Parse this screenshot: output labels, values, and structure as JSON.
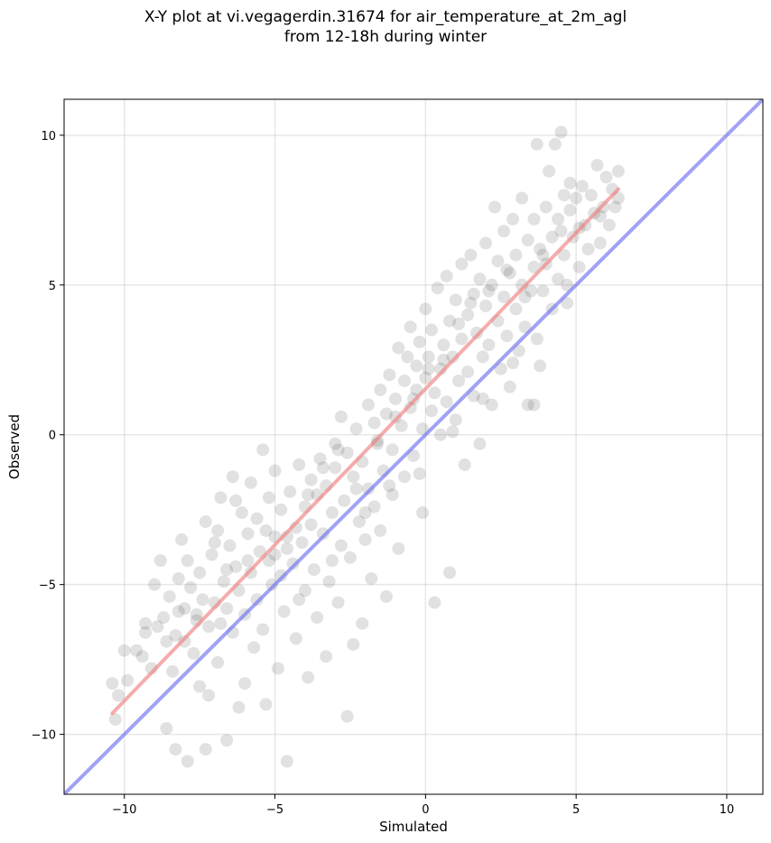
{
  "chart_data": {
    "type": "scatter",
    "title_lines": [
      "X-Y plot at vi.vegagerdin.31674 for air_temperature_at_2m_agl",
      "from 12-18h during winter"
    ],
    "xlabel": "Simulated",
    "ylabel": "Observed",
    "xlim": [
      -12.0,
      11.2
    ],
    "ylim": [
      -12.0,
      11.2
    ],
    "xticks": [
      -10,
      -5,
      0,
      5,
      10
    ],
    "yticks": [
      -10,
      -5,
      0,
      5,
      10
    ],
    "xtick_labels": [
      "−10",
      "−5",
      "0",
      "5",
      "10"
    ],
    "ytick_labels": [
      "−10",
      "−5",
      "0",
      "5",
      "10"
    ],
    "grid": true,
    "point_color": "#444444",
    "point_alpha": 0.16,
    "series": [
      {
        "kind": "points",
        "points": [
          [
            -10.4,
            -8.3
          ],
          [
            -10.3,
            -9.5
          ],
          [
            -10.2,
            -8.7
          ],
          [
            -10.0,
            -7.2
          ],
          [
            -9.9,
            -8.2
          ],
          [
            -9.6,
            -7.2
          ],
          [
            -9.4,
            -7.4
          ],
          [
            -9.3,
            -6.6
          ],
          [
            -9.1,
            -7.8
          ],
          [
            -9.0,
            -5.0
          ],
          [
            -8.9,
            -6.4
          ],
          [
            -8.8,
            -4.2
          ],
          [
            -8.7,
            -6.1
          ],
          [
            -8.6,
            -6.9
          ],
          [
            -8.6,
            -9.8
          ],
          [
            -8.5,
            -5.4
          ],
          [
            -8.4,
            -7.9
          ],
          [
            -8.3,
            -6.7
          ],
          [
            -8.3,
            -10.5
          ],
          [
            -8.2,
            -4.8
          ],
          [
            -8.1,
            -3.5
          ],
          [
            -8.0,
            -5.8
          ],
          [
            -8.0,
            -6.9
          ],
          [
            -7.9,
            -4.2
          ],
          [
            -7.9,
            -10.9
          ],
          [
            -7.8,
            -5.1
          ],
          [
            -7.7,
            -7.3
          ],
          [
            -7.6,
            -6.0
          ],
          [
            -7.5,
            -4.6
          ],
          [
            -7.5,
            -8.4
          ],
          [
            -7.4,
            -5.5
          ],
          [
            -7.3,
            -2.9
          ],
          [
            -7.3,
            -10.5
          ],
          [
            -7.2,
            -6.4
          ],
          [
            -7.2,
            -8.7
          ],
          [
            -7.1,
            -4.0
          ],
          [
            -7.0,
            -5.6
          ],
          [
            -6.9,
            -3.2
          ],
          [
            -6.9,
            -7.6
          ],
          [
            -6.8,
            -6.3
          ],
          [
            -6.8,
            -2.1
          ],
          [
            -6.7,
            -4.9
          ],
          [
            -6.6,
            -5.8
          ],
          [
            -6.6,
            -10.2
          ],
          [
            -6.5,
            -3.7
          ],
          [
            -6.4,
            -6.6
          ],
          [
            -6.4,
            -1.4
          ],
          [
            -6.3,
            -4.4
          ],
          [
            -6.2,
            -9.1
          ],
          [
            -6.2,
            -5.2
          ],
          [
            -6.1,
            -2.6
          ],
          [
            -6.0,
            -6.0
          ],
          [
            -6.0,
            -8.3
          ],
          [
            -5.9,
            -3.3
          ],
          [
            -5.8,
            -4.6
          ],
          [
            -5.8,
            -1.6
          ],
          [
            -5.7,
            -7.1
          ],
          [
            -5.6,
            -5.5
          ],
          [
            -5.6,
            -2.8
          ],
          [
            -5.5,
            -3.9
          ],
          [
            -5.4,
            -0.5
          ],
          [
            -5.4,
            -6.5
          ],
          [
            -5.3,
            -9.0
          ],
          [
            -5.2,
            -4.2
          ],
          [
            -5.2,
            -2.1
          ],
          [
            -5.1,
            -5.0
          ],
          [
            -5.0,
            -3.4
          ],
          [
            -5.0,
            -1.2
          ],
          [
            -4.9,
            -7.8
          ],
          [
            -4.8,
            -4.7
          ],
          [
            -4.8,
            -2.5
          ],
          [
            -4.7,
            -5.9
          ],
          [
            -4.6,
            -3.8
          ],
          [
            -4.6,
            -10.9
          ],
          [
            -4.5,
            -1.9
          ],
          [
            -4.4,
            -4.3
          ],
          [
            -4.3,
            -3.1
          ],
          [
            -4.3,
            -6.8
          ],
          [
            -4.2,
            -1.0
          ],
          [
            -4.1,
            -3.6
          ],
          [
            -4.0,
            -5.2
          ],
          [
            -4.0,
            -2.4
          ],
          [
            -3.9,
            -8.1
          ],
          [
            -3.8,
            -3.0
          ],
          [
            -3.8,
            -1.5
          ],
          [
            -3.7,
            -4.5
          ],
          [
            -3.6,
            -2.0
          ],
          [
            -3.6,
            -6.1
          ],
          [
            -3.5,
            -0.8
          ],
          [
            -3.4,
            -3.3
          ],
          [
            -3.3,
            -1.7
          ],
          [
            -3.3,
            -7.4
          ],
          [
            -3.2,
            -4.9
          ],
          [
            -3.1,
            -2.6
          ],
          [
            -3.0,
            -0.3
          ],
          [
            -3.0,
            -1.1
          ],
          [
            -2.9,
            -5.6
          ],
          [
            -2.8,
            -3.7
          ],
          [
            -2.8,
            0.6
          ],
          [
            -2.7,
            -2.2
          ],
          [
            -2.6,
            -0.6
          ],
          [
            -2.6,
            -9.4
          ],
          [
            -2.5,
            -4.1
          ],
          [
            -2.4,
            -1.4
          ],
          [
            -2.4,
            -7.0
          ],
          [
            -2.3,
            0.2
          ],
          [
            -2.2,
            -2.9
          ],
          [
            -2.1,
            -0.9
          ],
          [
            -2.1,
            -6.3
          ],
          [
            -2.0,
            -3.5
          ],
          [
            -1.9,
            1.0
          ],
          [
            -1.9,
            -1.8
          ],
          [
            -1.8,
            -4.8
          ],
          [
            -1.7,
            0.4
          ],
          [
            -1.7,
            -2.4
          ],
          [
            -1.6,
            -0.2
          ],
          [
            -1.5,
            1.5
          ],
          [
            -1.5,
            -3.2
          ],
          [
            -1.4,
            -1.2
          ],
          [
            -1.3,
            0.7
          ],
          [
            -1.3,
            -5.4
          ],
          [
            -1.2,
            2.0
          ],
          [
            -1.1,
            -0.5
          ],
          [
            -1.1,
            -2.0
          ],
          [
            -1.0,
            1.2
          ],
          [
            -0.9,
            2.9
          ],
          [
            -0.9,
            -3.8
          ],
          [
            -0.8,
            0.3
          ],
          [
            -0.7,
            1.8
          ],
          [
            -0.7,
            -1.4
          ],
          [
            -0.6,
            2.6
          ],
          [
            -0.5,
            0.9
          ],
          [
            -0.5,
            3.6
          ],
          [
            -0.4,
            -0.7
          ],
          [
            -0.3,
            1.5
          ],
          [
            -0.3,
            2.3
          ],
          [
            -0.2,
            3.1
          ],
          [
            -0.1,
            0.2
          ],
          [
            -0.1,
            -2.6
          ],
          [
            0.0,
            1.9
          ],
          [
            0.0,
            4.2
          ],
          [
            0.1,
            2.6
          ],
          [
            0.2,
            0.8
          ],
          [
            0.2,
            3.5
          ],
          [
            0.3,
            -5.6
          ],
          [
            0.3,
            1.4
          ],
          [
            0.4,
            4.9
          ],
          [
            0.5,
            2.2
          ],
          [
            0.5,
            0.0
          ],
          [
            0.6,
            3.0
          ],
          [
            0.7,
            5.3
          ],
          [
            0.7,
            1.1
          ],
          [
            0.8,
            -4.6
          ],
          [
            0.8,
            3.8
          ],
          [
            0.9,
            2.6
          ],
          [
            1.0,
            4.5
          ],
          [
            1.0,
            0.5
          ],
          [
            1.1,
            1.8
          ],
          [
            1.2,
            5.7
          ],
          [
            1.2,
            3.2
          ],
          [
            1.3,
            -1.0
          ],
          [
            1.4,
            4.0
          ],
          [
            1.4,
            2.1
          ],
          [
            1.5,
            6.0
          ],
          [
            1.6,
            4.7
          ],
          [
            1.6,
            1.3
          ],
          [
            1.7,
            3.4
          ],
          [
            1.8,
            5.2
          ],
          [
            1.8,
            -0.3
          ],
          [
            1.9,
            2.6
          ],
          [
            2.0,
            4.3
          ],
          [
            2.0,
            6.4
          ],
          [
            2.1,
            3.0
          ],
          [
            2.2,
            5.0
          ],
          [
            2.2,
            1.0
          ],
          [
            2.3,
            7.6
          ],
          [
            2.4,
            3.8
          ],
          [
            2.4,
            5.8
          ],
          [
            2.5,
            2.2
          ],
          [
            2.6,
            4.6
          ],
          [
            2.6,
            6.8
          ],
          [
            2.7,
            3.3
          ],
          [
            2.8,
            5.4
          ],
          [
            2.8,
            1.6
          ],
          [
            2.9,
            7.2
          ],
          [
            3.0,
            4.2
          ],
          [
            3.0,
            6.0
          ],
          [
            3.1,
            2.8
          ],
          [
            3.2,
            5.0
          ],
          [
            3.2,
            7.9
          ],
          [
            3.3,
            3.6
          ],
          [
            3.4,
            6.5
          ],
          [
            3.4,
            1.0
          ],
          [
            3.5,
            4.8
          ],
          [
            3.6,
            7.2
          ],
          [
            3.6,
            5.6
          ],
          [
            3.7,
            9.7
          ],
          [
            3.7,
            3.2
          ],
          [
            3.8,
            6.2
          ],
          [
            3.8,
            2.3
          ],
          [
            3.9,
            4.8
          ],
          [
            4.0,
            7.6
          ],
          [
            4.0,
            5.7
          ],
          [
            4.1,
            8.8
          ],
          [
            4.2,
            6.6
          ],
          [
            4.2,
            4.2
          ],
          [
            4.3,
            9.7
          ],
          [
            4.4,
            7.2
          ],
          [
            4.4,
            5.2
          ],
          [
            4.5,
            10.1
          ],
          [
            4.6,
            8.0
          ],
          [
            4.6,
            6.0
          ],
          [
            4.7,
            4.4
          ],
          [
            4.8,
            7.5
          ],
          [
            4.8,
            8.4
          ],
          [
            4.9,
            6.6
          ],
          [
            5.0,
            7.9
          ],
          [
            5.1,
            5.6
          ],
          [
            5.2,
            8.3
          ],
          [
            5.3,
            7.0
          ],
          [
            5.4,
            6.2
          ],
          [
            5.5,
            8.0
          ],
          [
            5.6,
            7.4
          ],
          [
            5.7,
            9.0
          ],
          [
            5.8,
            6.4
          ],
          [
            5.9,
            7.6
          ],
          [
            6.0,
            8.6
          ],
          [
            6.1,
            7.0
          ],
          [
            6.2,
            8.2
          ],
          [
            6.3,
            7.6
          ],
          [
            6.4,
            8.8
          ],
          [
            6.4,
            7.9
          ],
          [
            -9.3,
            -6.3
          ],
          [
            -8.2,
            -5.9
          ],
          [
            -7.6,
            -6.2
          ],
          [
            -6.6,
            -4.5
          ],
          [
            -5.9,
            -4.2
          ],
          [
            -5.3,
            -3.2
          ],
          [
            -4.6,
            -3.4
          ],
          [
            -3.9,
            -2.0
          ],
          [
            -3.4,
            -1.1
          ],
          [
            -2.9,
            -0.5
          ],
          [
            -2.3,
            -1.8
          ],
          [
            -1.6,
            -0.3
          ],
          [
            -1.0,
            0.6
          ],
          [
            -0.4,
            1.2
          ],
          [
            0.1,
            2.2
          ],
          [
            0.6,
            2.5
          ],
          [
            1.1,
            3.7
          ],
          [
            1.5,
            4.4
          ],
          [
            2.1,
            4.8
          ],
          [
            2.7,
            5.5
          ],
          [
            3.3,
            4.6
          ],
          [
            3.9,
            6.0
          ],
          [
            4.5,
            6.8
          ],
          [
            5.1,
            6.9
          ],
          [
            5.8,
            7.3
          ],
          [
            -7.0,
            -3.6
          ],
          [
            -6.3,
            -2.2
          ],
          [
            -5.0,
            -4.0
          ],
          [
            -4.2,
            -5.5
          ],
          [
            -3.1,
            -4.2
          ],
          [
            -2.0,
            -2.6
          ],
          [
            -1.2,
            -1.7
          ],
          [
            -0.2,
            -1.3
          ],
          [
            0.9,
            0.1
          ],
          [
            1.9,
            1.2
          ],
          [
            2.9,
            2.4
          ],
          [
            3.6,
            1.0
          ],
          [
            4.7,
            5.0
          ]
        ]
      },
      {
        "kind": "line",
        "name": "",
        "color": "#f08080",
        "x": [
          -10.4,
          6.4
        ],
        "y": [
          -9.3,
          8.2
        ]
      },
      {
        "kind": "line",
        "name": "",
        "color": "#6e6ef0",
        "x": [
          -12.0,
          11.2
        ],
        "y": [
          -12.0,
          11.2
        ]
      }
    ]
  }
}
